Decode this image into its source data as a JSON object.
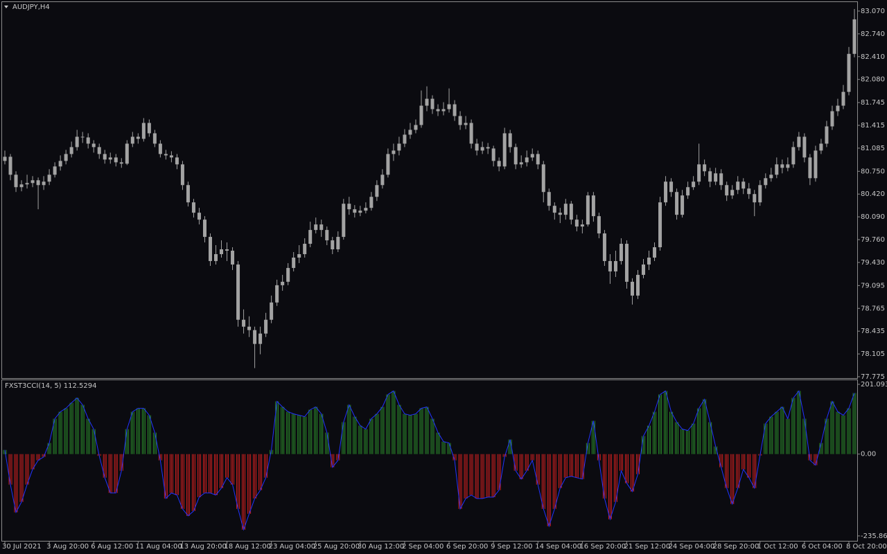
{
  "chart_data": [
    {
      "type": "candlestick",
      "title": "AUDJPY,H4",
      "color": "#a3a3a3",
      "categories": [
        "30 Jul 2021",
        null,
        null,
        null,
        null,
        null,
        null,
        null,
        "3 Aug 20:00",
        null,
        null,
        null,
        null,
        null,
        null,
        null,
        "6 Aug 12:00",
        null,
        null,
        null,
        null,
        null,
        null,
        null,
        "11 Aug 04:00",
        null,
        null,
        null,
        null,
        null,
        null,
        null,
        "13 Aug 20:00",
        null,
        null,
        null,
        null,
        null,
        null,
        null,
        "18 Aug 12:00",
        null,
        null,
        null,
        null,
        null,
        null,
        null,
        "23 Aug 04:00",
        null,
        null,
        null,
        null,
        null,
        null,
        null,
        "25 Aug 20:00",
        null,
        null,
        null,
        null,
        null,
        null,
        null,
        "30 Aug 12:00",
        null,
        null,
        null,
        null,
        null,
        null,
        null,
        "2 Sep 04:00",
        null,
        null,
        null,
        null,
        null,
        null,
        null,
        "6 Sep 20:00",
        null,
        null,
        null,
        null,
        null,
        null,
        null,
        "9 Sep 12:00",
        null,
        null,
        null,
        null,
        null,
        null,
        null,
        "14 Sep 04:00",
        null,
        null,
        null,
        null,
        null,
        null,
        null,
        "16 Sep 20:00",
        null,
        null,
        null,
        null,
        null,
        null,
        null,
        "21 Sep 12:00",
        null,
        null,
        null,
        null,
        null,
        null,
        null,
        "24 Sep 04:00",
        null,
        null,
        null,
        null,
        null,
        null,
        null,
        "28 Sep 20:00",
        null,
        null,
        null,
        null,
        null,
        null,
        null,
        "1 Oct 12:00",
        null,
        null,
        null,
        null,
        null,
        null,
        null,
        "6 Oct 04:00",
        null,
        null,
        null,
        null,
        null,
        null,
        null,
        "8 Oct 20:00",
        null
      ],
      "open": [
        80.9,
        80.96,
        80.7,
        80.52,
        80.56,
        80.58,
        80.62,
        80.55,
        80.6,
        80.7,
        80.82,
        80.9,
        81.0,
        81.1,
        81.25,
        81.24,
        81.15,
        81.1,
        81.0,
        80.92,
        80.95,
        80.88,
        80.86,
        81.15,
        81.25,
        81.22,
        81.45,
        81.3,
        81.15,
        81.0,
        80.98,
        80.95,
        80.85,
        80.55,
        80.3,
        80.15,
        80.05,
        79.8,
        79.45,
        79.55,
        79.62,
        79.6,
        79.4,
        78.6,
        78.5,
        78.45,
        78.25,
        78.4,
        78.6,
        78.85,
        79.1,
        79.15,
        79.35,
        79.5,
        79.55,
        79.7,
        79.9,
        79.98,
        79.9,
        79.75,
        79.62,
        79.8,
        80.28,
        80.2,
        80.15,
        80.18,
        80.22,
        80.38,
        80.55,
        80.7,
        81.0,
        81.05,
        81.15,
        81.28,
        81.35,
        81.42,
        81.7,
        81.8,
        81.65,
        81.62,
        81.65,
        81.72,
        81.55,
        81.42,
        81.45,
        81.15,
        81.05,
        81.1,
        81.08,
        80.9,
        80.82,
        81.3,
        81.1,
        80.85,
        80.88,
        80.95,
        81.0,
        80.85,
        80.45,
        80.25,
        80.15,
        80.12,
        80.28,
        80.05,
        79.95,
        79.98,
        80.4,
        80.1,
        79.85,
        79.45,
        79.3,
        79.45,
        79.7,
        79.15,
        78.95,
        79.25,
        79.4,
        79.5,
        79.65,
        80.3,
        80.6,
        80.45,
        80.12,
        80.4,
        80.52,
        80.6,
        80.85,
        80.75,
        80.6,
        80.72,
        80.55,
        80.4,
        80.48,
        80.6,
        80.5,
        80.42,
        80.3,
        80.55,
        80.65,
        80.7,
        80.85,
        80.8,
        80.85,
        81.1,
        81.25,
        80.95,
        80.65,
        81.05,
        81.15,
        81.4,
        81.62,
        81.7,
        81.9,
        82.45
      ],
      "high": [
        81.05,
        81.0,
        80.75,
        80.62,
        80.7,
        80.68,
        80.66,
        80.68,
        80.78,
        80.88,
        80.98,
        81.06,
        81.18,
        81.35,
        81.32,
        81.3,
        81.2,
        81.15,
        81.06,
        81.02,
        81.0,
        80.94,
        81.2,
        81.32,
        81.3,
        81.52,
        81.5,
        81.35,
        81.2,
        81.06,
        81.04,
        81.0,
        80.9,
        80.6,
        80.35,
        80.22,
        80.1,
        79.85,
        79.68,
        79.75,
        79.72,
        79.65,
        79.45,
        78.75,
        78.65,
        78.5,
        78.5,
        78.7,
        78.95,
        79.18,
        79.25,
        79.42,
        79.58,
        79.68,
        79.78,
        80.02,
        80.08,
        80.05,
        79.95,
        79.8,
        79.88,
        80.35,
        80.38,
        80.26,
        80.25,
        80.3,
        80.45,
        80.62,
        80.78,
        81.08,
        81.15,
        81.25,
        81.36,
        81.45,
        81.5,
        81.92,
        81.98,
        81.85,
        81.72,
        81.75,
        81.95,
        81.78,
        81.62,
        81.55,
        81.5,
        81.22,
        81.18,
        81.16,
        81.12,
        80.95,
        81.38,
        81.35,
        81.15,
        80.98,
        81.05,
        81.08,
        81.05,
        80.9,
        80.5,
        80.3,
        80.22,
        80.35,
        80.32,
        80.12,
        80.05,
        80.45,
        80.45,
        80.15,
        79.9,
        79.55,
        79.6,
        79.78,
        79.75,
        79.2,
        79.32,
        79.48,
        79.6,
        79.72,
        80.38,
        80.68,
        80.65,
        80.5,
        80.48,
        80.6,
        80.68,
        81.15,
        80.92,
        80.8,
        80.8,
        80.78,
        80.6,
        80.55,
        80.68,
        80.65,
        80.58,
        80.48,
        80.62,
        80.72,
        80.8,
        80.95,
        80.92,
        80.95,
        81.18,
        81.32,
        81.3,
        81.0,
        81.12,
        81.22,
        81.48,
        81.7,
        81.8,
        82.0,
        82.55,
        83.1
      ],
      "low": [
        80.85,
        80.62,
        80.45,
        80.46,
        80.5,
        80.52,
        80.2,
        80.48,
        80.55,
        80.66,
        80.76,
        80.85,
        80.95,
        81.05,
        81.16,
        81.08,
        81.02,
        80.93,
        80.86,
        80.86,
        80.82,
        80.8,
        80.84,
        81.1,
        81.15,
        81.18,
        81.25,
        81.1,
        80.95,
        80.92,
        80.88,
        80.78,
        80.48,
        80.24,
        80.08,
        79.98,
        79.72,
        79.38,
        79.4,
        79.5,
        79.45,
        79.32,
        78.5,
        78.4,
        78.35,
        77.9,
        78.1,
        78.35,
        78.55,
        78.8,
        79.02,
        79.1,
        79.3,
        79.42,
        79.5,
        79.65,
        79.85,
        79.8,
        79.68,
        79.55,
        79.58,
        79.76,
        80.12,
        80.08,
        80.1,
        80.14,
        80.18,
        80.32,
        80.5,
        80.66,
        80.9,
        80.98,
        81.1,
        81.22,
        81.3,
        81.38,
        81.62,
        81.58,
        81.55,
        81.56,
        81.6,
        81.48,
        81.35,
        81.36,
        81.08,
        80.98,
        81.0,
        81.0,
        80.82,
        80.75,
        80.78,
        81.02,
        80.78,
        80.8,
        80.82,
        80.9,
        80.78,
        80.3,
        80.18,
        80.05,
        80.0,
        80.05,
        79.98,
        79.88,
        79.85,
        79.95,
        80.02,
        79.78,
        79.38,
        79.12,
        79.22,
        79.4,
        79.05,
        78.82,
        78.9,
        79.2,
        79.32,
        79.45,
        79.6,
        80.25,
        80.38,
        80.05,
        80.08,
        80.35,
        80.48,
        80.55,
        80.68,
        80.52,
        80.55,
        80.48,
        80.32,
        80.35,
        80.42,
        80.42,
        80.35,
        80.1,
        80.25,
        80.5,
        80.6,
        80.65,
        80.72,
        80.75,
        80.8,
        81.05,
        80.88,
        80.55,
        80.6,
        81.0,
        81.1,
        81.35,
        81.55,
        81.65,
        81.85,
        82.4
      ],
      "close": [
        80.96,
        80.7,
        80.52,
        80.56,
        80.58,
        80.62,
        80.55,
        80.6,
        80.7,
        80.82,
        80.9,
        81.0,
        81.1,
        81.25,
        81.24,
        81.15,
        81.1,
        81.0,
        80.92,
        80.95,
        80.88,
        80.86,
        81.15,
        81.25,
        81.22,
        81.45,
        81.3,
        81.15,
        81.0,
        80.98,
        80.95,
        80.85,
        80.55,
        80.3,
        80.15,
        80.05,
        79.8,
        79.45,
        79.55,
        79.62,
        79.6,
        79.4,
        78.6,
        78.5,
        78.45,
        78.25,
        78.4,
        78.6,
        78.85,
        79.1,
        79.15,
        79.35,
        79.5,
        79.55,
        79.7,
        79.9,
        79.98,
        79.9,
        79.75,
        79.62,
        79.8,
        80.28,
        80.2,
        80.15,
        80.18,
        80.22,
        80.38,
        80.55,
        80.7,
        81.0,
        81.05,
        81.15,
        81.28,
        81.35,
        81.42,
        81.7,
        81.8,
        81.65,
        81.62,
        81.65,
        81.72,
        81.55,
        81.42,
        81.45,
        81.15,
        81.05,
        81.1,
        81.08,
        80.9,
        80.82,
        81.3,
        81.1,
        80.85,
        80.88,
        80.95,
        81.0,
        80.85,
        80.45,
        80.25,
        80.15,
        80.12,
        80.28,
        80.05,
        79.95,
        79.98,
        80.4,
        80.1,
        79.85,
        79.45,
        79.3,
        79.45,
        79.7,
        79.15,
        78.95,
        79.25,
        79.4,
        79.5,
        79.65,
        80.3,
        80.6,
        80.45,
        80.12,
        80.4,
        80.52,
        80.6,
        80.85,
        80.75,
        80.6,
        80.72,
        80.55,
        80.4,
        80.48,
        80.6,
        80.5,
        80.42,
        80.3,
        80.55,
        80.65,
        80.7,
        80.85,
        80.8,
        80.85,
        81.1,
        81.25,
        80.95,
        80.65,
        81.05,
        81.15,
        81.4,
        81.62,
        81.7,
        81.9,
        82.45,
        82.95
      ],
      "ylim": [
        77.755,
        83.2
      ],
      "yticks": [
        {
          "value": 83.07,
          "label": "83.070"
        },
        {
          "value": 82.74,
          "label": "82.740"
        },
        {
          "value": 82.41,
          "label": "82.410"
        },
        {
          "value": 82.08,
          "label": "82.080"
        },
        81.745,
        81.415,
        81.085,
        {
          "value": 80.75,
          "label": "80.750"
        },
        {
          "value": 80.42,
          "label": "80.420"
        },
        {
          "value": 80.09,
          "label": "80.090"
        },
        {
          "value": 79.76,
          "label": "79.760"
        },
        {
          "value": 79.43,
          "label": "79.430"
        },
        79.095,
        78.765,
        78.435,
        78.105,
        77.775
      ]
    },
    {
      "type": "histogram-line",
      "title": "FXST3CCI(14, 5) 112.5294",
      "positive_color": "#2b8a2b",
      "negative_color": "#d02020",
      "line_color": "#2233ff",
      "values": [
        12,
        -88,
        -168,
        -138,
        -88,
        -44,
        -18,
        -8,
        32,
        102,
        122,
        132,
        148,
        162,
        142,
        102,
        72,
        -5,
        -68,
        -112,
        -112,
        -48,
        72,
        122,
        132,
        132,
        112,
        62,
        -18,
        -128,
        -112,
        -118,
        -158,
        -178,
        -164,
        -124,
        -112,
        -112,
        -118,
        -98,
        -68,
        -88,
        -158,
        -218,
        -172,
        -128,
        -104,
        -68,
        12,
        152,
        136,
        122,
        116,
        112,
        108,
        128,
        136,
        116,
        62,
        -38,
        -18,
        92,
        142,
        108,
        82,
        72,
        102,
        116,
        136,
        172,
        182,
        142,
        116,
        112,
        116,
        132,
        136,
        102,
        62,
        36,
        32,
        -18,
        -158,
        -128,
        -118,
        -128,
        -128,
        -124,
        -124,
        -104,
        -8,
        42,
        -48,
        -72,
        -48,
        -18,
        -88,
        -158,
        -208,
        -158,
        -98,
        -68,
        -64,
        -68,
        -72,
        32,
        96,
        -18,
        -128,
        -188,
        -138,
        -48,
        -84,
        -108,
        -58,
        52,
        82,
        122,
        172,
        182,
        122,
        92,
        72,
        68,
        88,
        132,
        158,
        92,
        22,
        -38,
        -98,
        -144,
        -98,
        -44,
        -68,
        -98,
        -4,
        88,
        108,
        122,
        136,
        102,
        162,
        182,
        102,
        -18,
        -32,
        32,
        102,
        152,
        122,
        112,
        132,
        176
      ],
      "ylim": [
        -250,
        213
      ],
      "yticks": [
        201.0933,
        {
          "value": 0,
          "label": "0.00"
        },
        -235.861
      ]
    }
  ]
}
